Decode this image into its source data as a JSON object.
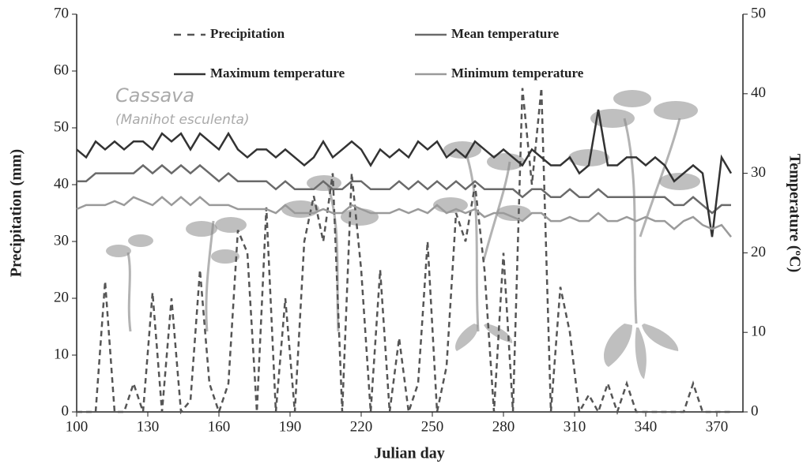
{
  "chart_data": {
    "type": "line",
    "xlabel": "Julian day",
    "ylabel": "Precipitation (mm)",
    "y2label": "Temperature (ºC)",
    "annotations": [
      "Cassava",
      "(Manihot esculenta)"
    ],
    "xlim": [
      100,
      381
    ],
    "xticks": [
      100,
      130,
      160,
      190,
      220,
      250,
      280,
      310,
      340,
      370
    ],
    "ylim": [
      0,
      70
    ],
    "yticks": [
      0,
      10,
      20,
      30,
      40,
      50,
      60,
      70
    ],
    "y2lim": [
      0,
      50
    ],
    "y2ticks": [
      0,
      10,
      20,
      30,
      40,
      50
    ],
    "x": [
      100,
      104,
      108,
      112,
      116,
      120,
      124,
      128,
      132,
      136,
      140,
      144,
      148,
      152,
      156,
      160,
      164,
      168,
      172,
      176,
      180,
      184,
      188,
      192,
      196,
      200,
      204,
      208,
      212,
      216,
      220,
      224,
      228,
      232,
      236,
      240,
      244,
      248,
      252,
      256,
      260,
      264,
      268,
      272,
      276,
      280,
      284,
      288,
      292,
      296,
      300,
      304,
      308,
      312,
      316,
      320,
      324,
      328,
      332,
      336,
      340,
      344,
      348,
      352,
      356,
      360,
      364,
      368,
      372,
      376
    ],
    "series": [
      {
        "name": "Precipitation",
        "color": "#555555",
        "style": "dashed",
        "values": [
          0,
          0,
          0,
          23,
          0,
          0,
          5,
          0,
          21,
          0,
          20,
          0,
          2,
          25,
          5,
          0,
          5,
          32,
          28,
          0,
          36,
          0,
          20,
          0,
          30,
          38,
          30,
          42,
          0,
          42,
          25,
          0,
          25,
          0,
          13,
          0,
          5,
          30,
          0,
          8,
          35,
          30,
          40,
          25,
          0,
          28,
          0,
          57,
          40,
          57,
          0,
          22,
          14,
          0,
          3,
          0,
          5,
          0,
          5,
          0,
          0,
          0,
          0,
          0,
          0,
          5,
          0,
          0,
          0,
          0
        ]
      },
      {
        "name": "Mean temperature",
        "color": "#6a6a6a",
        "style": "solid",
        "axis": "y2",
        "values": [
          29,
          29,
          30,
          30,
          30,
          30,
          30,
          31,
          30,
          31,
          30,
          31,
          30,
          31,
          30,
          29,
          30,
          29,
          29,
          29,
          29,
          28,
          29,
          28,
          28,
          28,
          29,
          28,
          28,
          29,
          29,
          28,
          28,
          28,
          29,
          28,
          29,
          28,
          29,
          28,
          29,
          28,
          29,
          28,
          28,
          28,
          28,
          27,
          28,
          28,
          27,
          27,
          28,
          27,
          27,
          28,
          27,
          27,
          27,
          27,
          27,
          27,
          27,
          26,
          26,
          27,
          26,
          25,
          26,
          26
        ]
      },
      {
        "name": "Maximum temperature",
        "color": "#333333",
        "style": "solid",
        "axis": "y2",
        "values": [
          33,
          32,
          34,
          33,
          34,
          33,
          34,
          34,
          33,
          35,
          34,
          35,
          33,
          35,
          34,
          33,
          35,
          33,
          32,
          33,
          33,
          32,
          33,
          32,
          31,
          32,
          34,
          32,
          33,
          34,
          33,
          31,
          33,
          32,
          33,
          32,
          34,
          33,
          34,
          32,
          33,
          32,
          34,
          33,
          32,
          33,
          32,
          31,
          33,
          32,
          31,
          31,
          32,
          30,
          31,
          38,
          31,
          31,
          32,
          32,
          31,
          32,
          31,
          29,
          30,
          31,
          30,
          22,
          32,
          30
        ]
      },
      {
        "name": "Minimum temperature",
        "color": "#9a9a9a",
        "style": "solid",
        "axis": "y2",
        "values": [
          25.5,
          26,
          26,
          26,
          26.5,
          26,
          27,
          26.5,
          26,
          27,
          26,
          27,
          26,
          27,
          26,
          26,
          26,
          25.5,
          25.5,
          25.5,
          25.5,
          25,
          26,
          25,
          25,
          25,
          25.5,
          25,
          25,
          26,
          25.5,
          25,
          25,
          25,
          25.5,
          25,
          25.5,
          25,
          26,
          25,
          25.5,
          25,
          25.5,
          24.5,
          25,
          25,
          24.5,
          24,
          25,
          25,
          24,
          24,
          24.5,
          24,
          24,
          25,
          24,
          24,
          24.5,
          24,
          24.5,
          24,
          24,
          23,
          24,
          24.5,
          23.5,
          23,
          23.5,
          22
        ]
      }
    ]
  }
}
